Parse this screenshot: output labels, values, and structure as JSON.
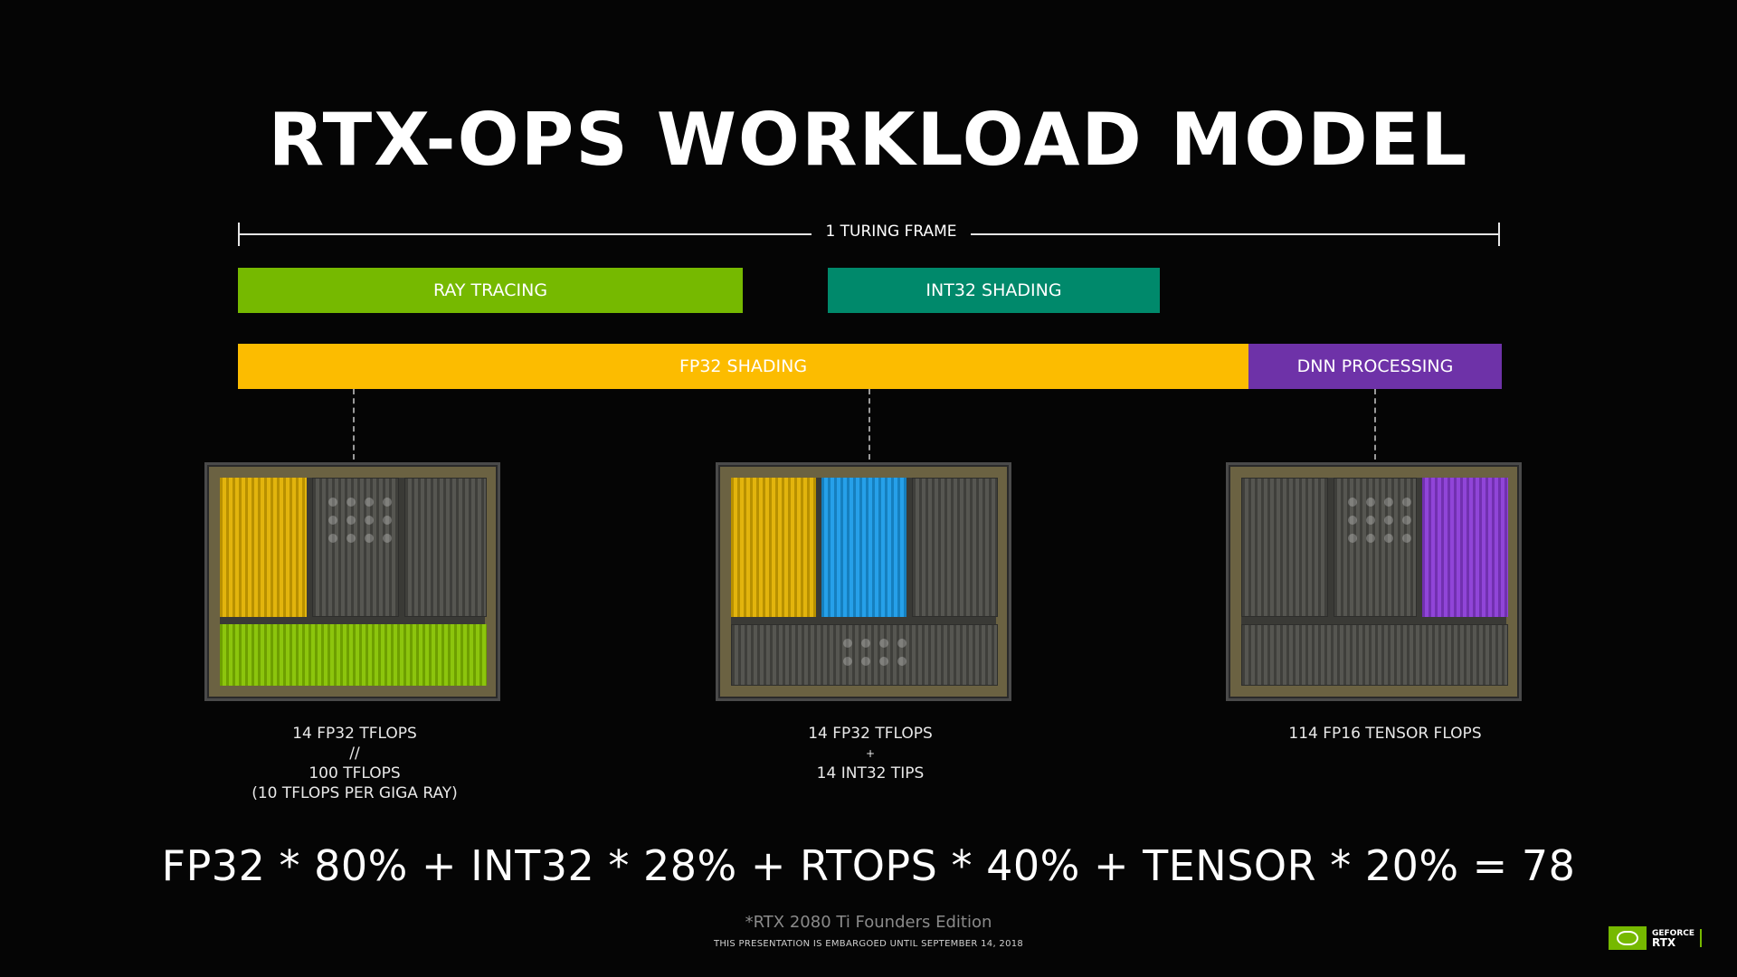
{
  "title": "RTX-OPS WORKLOAD MODEL",
  "frame_label": "1 TURING FRAME",
  "bars": {
    "ray_tracing": "RAY TRACING",
    "int32_shading": "INT32 SHADING",
    "fp32_shading": "FP32 SHADING",
    "dnn_processing": "DNN PROCESSING"
  },
  "captions": {
    "left": [
      "14 FP32 TFLOPS",
      "//",
      "100 TFLOPS",
      "(10 TFLOPS PER GIGA RAY)"
    ],
    "middle": [
      "14 FP32 TFLOPS",
      "+",
      "14 INT32 TIPS"
    ],
    "right": [
      "114 FP16 TENSOR FLOPS"
    ]
  },
  "formula": "FP32 * 80% + INT32 * 28% + RTOPS * 40% + TENSOR * 20% = 78",
  "footnote": "*RTX 2080 Ti Founders Edition",
  "embargo": "THIS PRESENTATION IS EMBARGOED UNTIL SEPTEMBER 14, 2018",
  "logo": {
    "top": "GEFORCE",
    "bottom": "RTX"
  },
  "colors": {
    "ray_tracing": "#76b900",
    "int32_shading": "#00896b",
    "fp32_shading": "#fcbc00",
    "dnn_processing": "#6e32a8",
    "int32_block": "#1a9be8"
  },
  "icons": [
    "nvidia-logo-icon"
  ]
}
